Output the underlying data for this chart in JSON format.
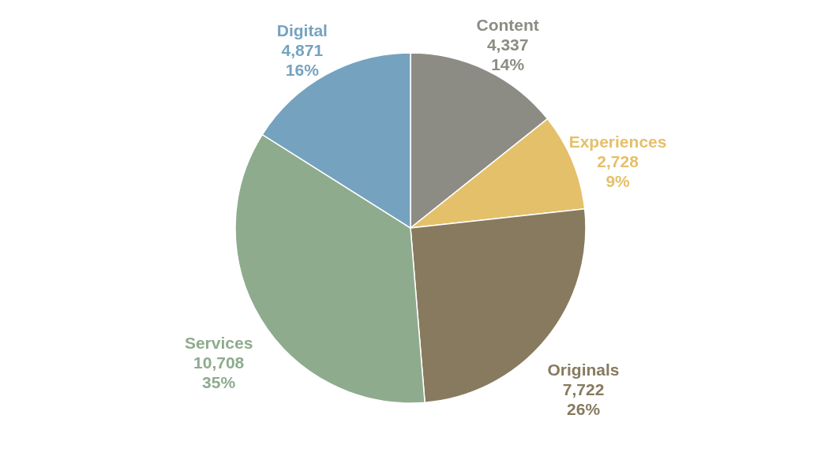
{
  "chart_data": {
    "type": "pie",
    "categories": [
      "Content",
      "Experiences",
      "Originals",
      "Services",
      "Digital"
    ],
    "values": [
      4337,
      2728,
      7722,
      10708,
      4871
    ],
    "colors": [
      "#8c8c84",
      "#e5c06a",
      "#877a5f",
      "#8eab8e",
      "#75a3bf"
    ],
    "value_labels": [
      "4,337\n14%",
      "2,728\n9%",
      "7,722\n26%",
      "10,708\n35%",
      "4,871\n16%"
    ]
  }
}
